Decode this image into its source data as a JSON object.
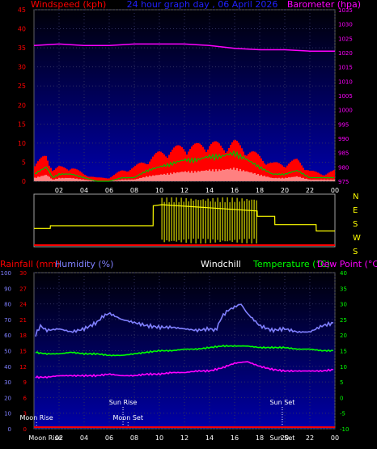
{
  "header": {
    "title": "24 hour graph day , 06 April 2026",
    "left_label": "Windspeed (kph)",
    "right_label": "Barometer (hpa)"
  },
  "lower_header": {
    "rainfall": "Rainfall (mm)",
    "humidity": "Humidity (%)",
    "windchill": "Windchill",
    "temperature": "Temperature (°C)",
    "dewpoint": "Dew Point (°C)"
  },
  "annotations": {
    "moon_rise": "Moon Rise",
    "sun_rise": "Sun Rise",
    "moon_set": "Moon Set",
    "sun_set": "Sun Set"
  },
  "colors": {
    "wind_gust": "#ff0000",
    "wind_avg": "#00c000",
    "wind_low": "#ffffff",
    "barometer": "#ff00ff",
    "direction": "#ffff00",
    "humidity": "#8080ff",
    "temperature": "#00ff00",
    "dewpoint": "#ff00ff",
    "rainfall": "#ff0000",
    "plot_bg_top": "#000010",
    "plot_bg_bottom": "#0000a0"
  },
  "chart_data": [
    {
      "type": "line",
      "title": "24 hour graph day , 06 April 2026",
      "ylabel": "Windspeed (kph)",
      "y2label": "Barometer (hpa)",
      "xlim": [
        0,
        24
      ],
      "ylim": [
        0,
        45
      ],
      "y2lim": [
        975,
        1035
      ],
      "x_ticks": [
        "02",
        "04",
        "06",
        "08",
        "10",
        "12",
        "14",
        "16",
        "18",
        "20",
        "22",
        "00"
      ],
      "y_ticks": [
        0,
        5,
        10,
        15,
        20,
        25,
        30,
        35,
        40,
        45
      ],
      "y2_ticks": [
        975,
        980,
        985,
        990,
        995,
        1000,
        1005,
        1010,
        1015,
        1020,
        1025,
        1030,
        1035
      ],
      "series": [
        {
          "name": "Windspeed",
          "x": [
            0,
            1,
            1.5,
            2,
            3,
            4,
            5,
            6,
            7,
            8,
            9,
            10,
            11,
            12,
            13,
            14,
            15,
            16,
            17,
            18,
            19,
            20,
            21,
            22,
            23,
            24
          ],
          "values": [
            2,
            4,
            1,
            2,
            2,
            1,
            0,
            0,
            1,
            1,
            3,
            4,
            5,
            6,
            6,
            7,
            7,
            8,
            6,
            4,
            2,
            2,
            3,
            1,
            1,
            1
          ]
        },
        {
          "name": "Gust",
          "x": [
            0,
            1,
            1.5,
            2,
            3,
            4,
            5,
            6,
            7,
            8,
            9,
            10,
            11,
            12,
            13,
            14,
            15,
            16,
            17,
            18,
            19,
            20,
            21,
            22,
            23,
            24
          ],
          "values": [
            4,
            8,
            3,
            4,
            4,
            2,
            1,
            1,
            3,
            4,
            6,
            8,
            9,
            10,
            10,
            11,
            10,
            11,
            9,
            7,
            5,
            5,
            6,
            3,
            2,
            3
          ]
        },
        {
          "name": "Barometer",
          "x": [
            0,
            2,
            4,
            6,
            8,
            10,
            12,
            14,
            16,
            18,
            20,
            22,
            24
          ],
          "values": [
            1022.5,
            1023,
            1022.5,
            1022.5,
            1023,
            1023,
            1023,
            1022.5,
            1021.5,
            1021,
            1021,
            1020.5,
            1020.5
          ]
        }
      ]
    },
    {
      "type": "line",
      "xlim": [
        0,
        24
      ],
      "y_labels": [
        "N",
        "E",
        "S",
        "W",
        "S"
      ],
      "series": [
        {
          "name": "Wind direction",
          "x": [
            0,
            1.3,
            1.31,
            9.5,
            9.51,
            10.2,
            17.8,
            17.81,
            19.2,
            19.21,
            22.5,
            22.51,
            24
          ],
          "values": [
            0.65,
            0.65,
            0.6,
            0.6,
            0.22,
            0.2,
            0.32,
            0.42,
            0.42,
            0.58,
            0.58,
            0.7,
            0.7
          ]
        }
      ]
    },
    {
      "type": "line",
      "xlim": [
        0,
        24
      ],
      "ylim": [
        0,
        100
      ],
      "y2lim": [
        -10,
        40
      ],
      "y_ticks": [
        0,
        10,
        20,
        30,
        40,
        50,
        60,
        70,
        80,
        90,
        100
      ],
      "rain_ticks": [
        0,
        3,
        6,
        9,
        12,
        15,
        18,
        21,
        24,
        27,
        30
      ],
      "y2_ticks": [
        -10,
        -5,
        0,
        5,
        10,
        15,
        20,
        25,
        30,
        35,
        40
      ],
      "x_ticks": [
        "02",
        "04",
        "06",
        "08",
        "10",
        "12",
        "14",
        "16",
        "18",
        "20",
        "22",
        "00"
      ],
      "series": [
        {
          "name": "Humidity",
          "x": [
            0,
            0.5,
            1,
            2,
            3,
            4,
            5,
            5.5,
            6,
            7,
            8,
            9,
            10,
            11,
            12,
            13,
            14,
            14.5,
            15,
            15.5,
            16,
            16.5,
            17,
            18,
            19,
            20,
            21,
            22,
            23,
            24
          ],
          "values": [
            58,
            66,
            63,
            64,
            62,
            64,
            68,
            72,
            74,
            70,
            68,
            66,
            65,
            65,
            64,
            63,
            64,
            63,
            72,
            76,
            78,
            80,
            74,
            66,
            63,
            64,
            62,
            62,
            66,
            68
          ]
        },
        {
          "name": "Temperature",
          "x": [
            0,
            1,
            2,
            3,
            4,
            5,
            6,
            7,
            8,
            9,
            10,
            11,
            12,
            13,
            14,
            15,
            16,
            17,
            18,
            19,
            20,
            21,
            22,
            23,
            24
          ],
          "values": [
            14.5,
            14,
            14,
            14.5,
            14,
            14,
            13.5,
            13.5,
            14,
            14.5,
            15,
            15,
            15.5,
            15.5,
            16,
            16.5,
            16.5,
            16.5,
            16,
            16,
            16,
            15.5,
            15.5,
            15,
            15
          ]
        },
        {
          "name": "Dew Point",
          "x": [
            0,
            1,
            2,
            3,
            4,
            5,
            6,
            7,
            8,
            9,
            10,
            11,
            12,
            13,
            14,
            15,
            16,
            17,
            18,
            19,
            20,
            21,
            22,
            23,
            24
          ],
          "values": [
            6.5,
            6.5,
            7,
            7,
            7,
            7,
            7.5,
            7,
            7,
            7.5,
            7.5,
            8,
            8,
            8.5,
            8.5,
            9.5,
            11,
            11.5,
            10,
            9,
            8.5,
            8.5,
            8.5,
            8.5,
            9
          ]
        },
        {
          "name": "Rainfall",
          "x": [
            0,
            24
          ],
          "values": [
            0,
            0
          ]
        }
      ]
    }
  ]
}
